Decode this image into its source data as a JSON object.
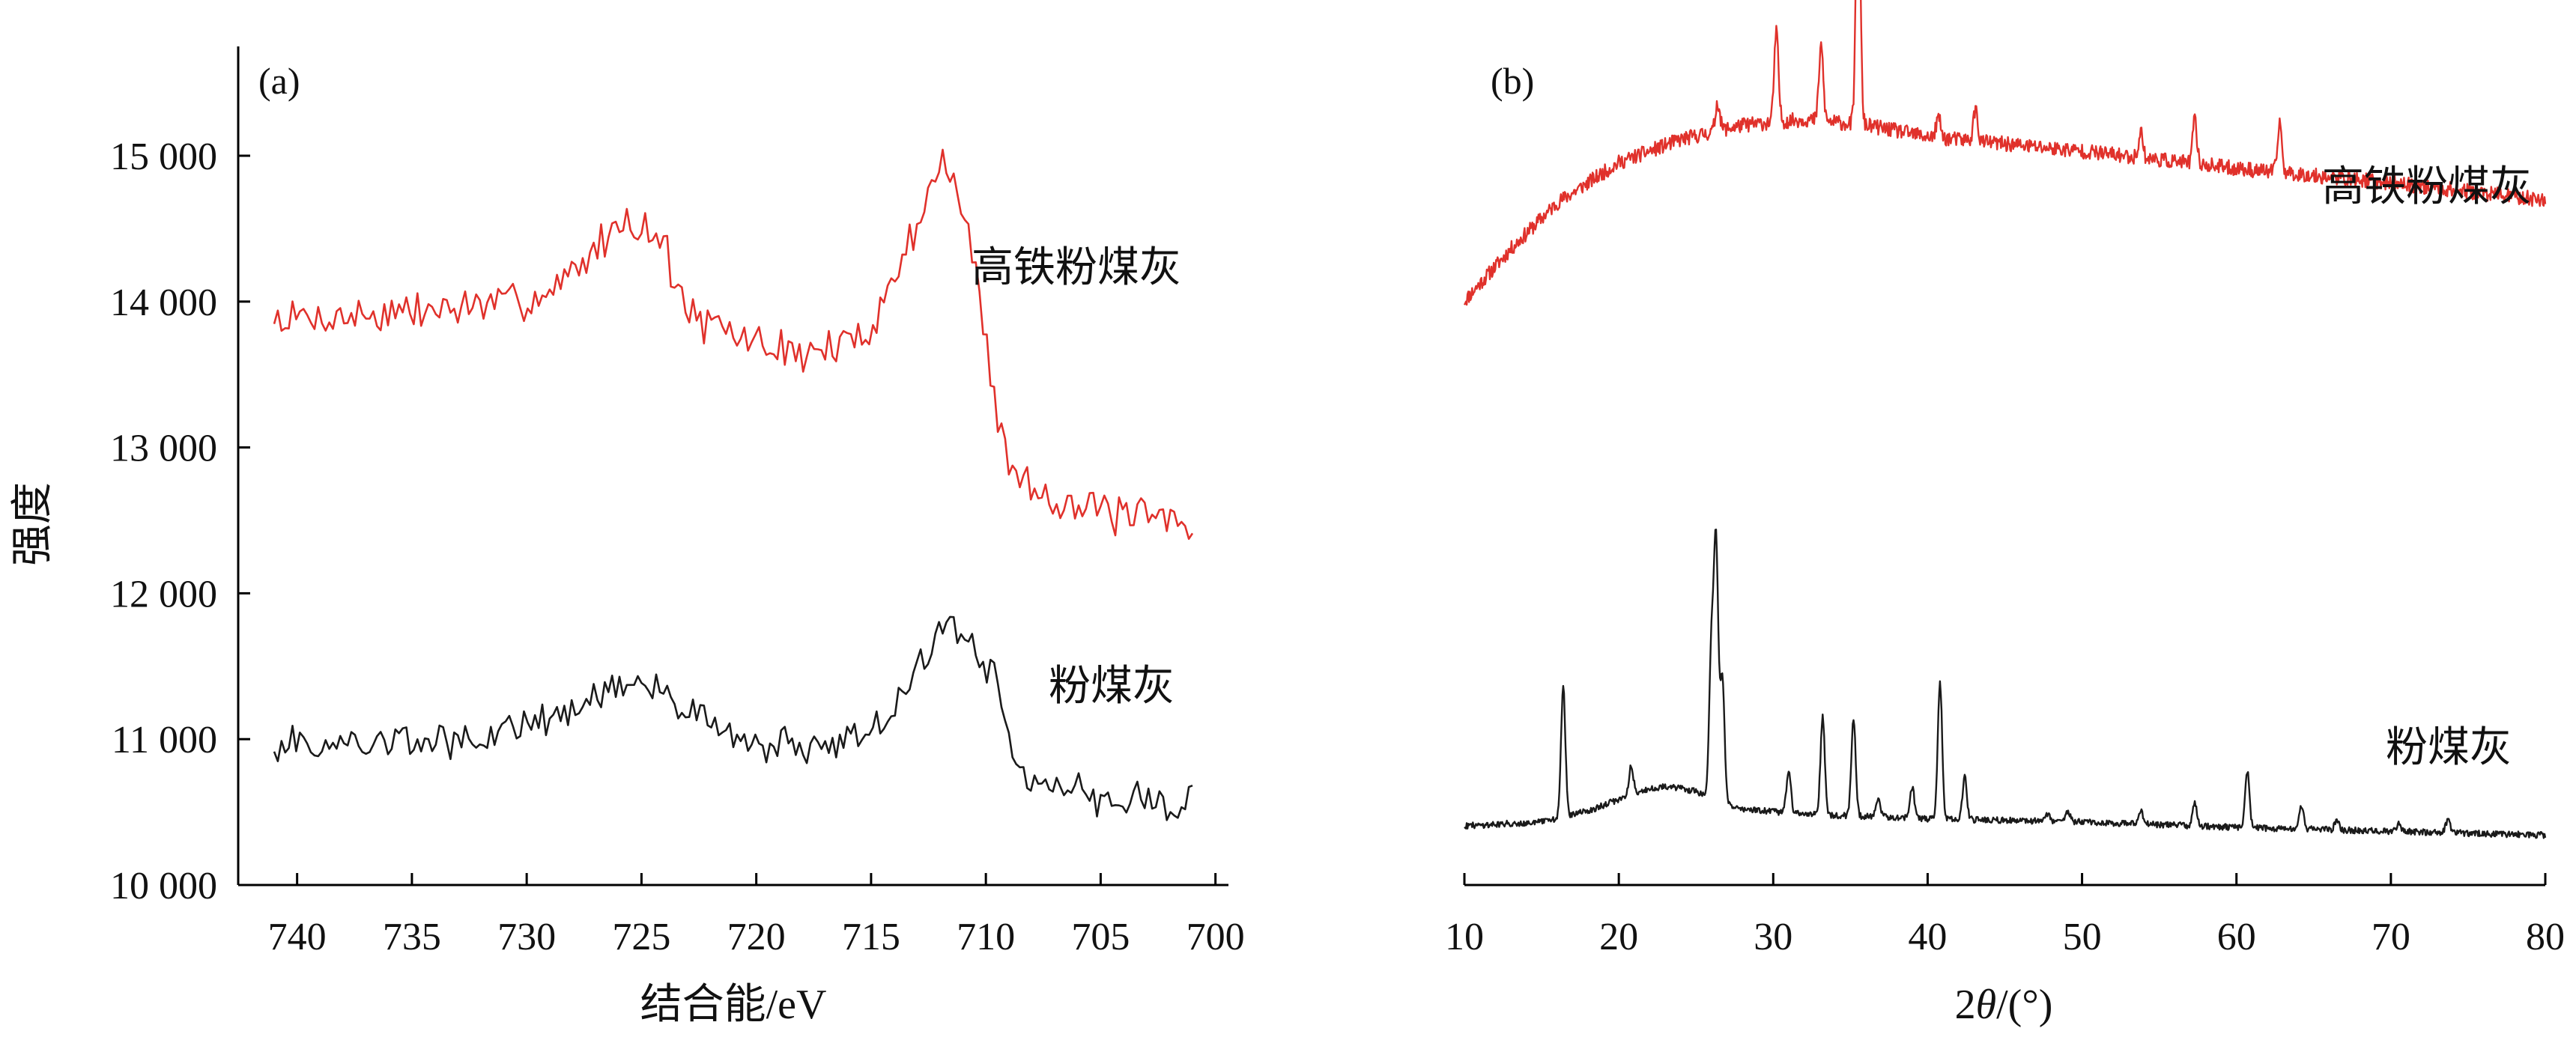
{
  "colors": {
    "red": "#e0312b",
    "black": "#1a1a1a",
    "axis": "#000000"
  },
  "chart_data": [
    {
      "panel_label": "(a)",
      "type": "line",
      "xlabel": "结合能/eV",
      "ylabel": "强度",
      "xlim": [
        741.5,
        699.2
      ],
      "x_reversed": true,
      "ylim": [
        10000,
        15500
      ],
      "xticks": [
        740,
        735,
        730,
        725,
        720,
        715,
        710,
        705,
        700
      ],
      "xtick_labels": [
        "740",
        "735",
        "730",
        "725",
        "720",
        "715",
        "710",
        "705",
        "700"
      ],
      "yticks": [
        10000,
        11000,
        12000,
        13000,
        14000,
        15000
      ],
      "ytick_labels": [
        "10 000",
        "11 000",
        "12 000",
        "13 000",
        "14 000",
        "15 000"
      ],
      "noise": {
        "seed": 7,
        "step": 0.16
      },
      "series": [
        {
          "name": "高铁粉煤灰",
          "color": "red",
          "amplitude": 120,
          "points": [
            [
              741,
              13880
            ],
            [
              738,
              13900
            ],
            [
              735,
              13930
            ],
            [
              733,
              13960
            ],
            [
              731,
              13980
            ],
            [
              729,
              14060
            ],
            [
              727,
              14350
            ],
            [
              726,
              14560
            ],
            [
              725,
              14530
            ],
            [
              724,
              14400
            ],
            [
              723.5,
              14100
            ],
            [
              722.5,
              13850
            ],
            [
              720,
              13720
            ],
            [
              718,
              13640
            ],
            [
              716,
              13700
            ],
            [
              715,
              13840
            ],
            [
              714,
              14150
            ],
            [
              713,
              14550
            ],
            [
              712,
              14950
            ],
            [
              711.5,
              14860
            ],
            [
              711,
              14600
            ],
            [
              710.5,
              14250
            ],
            [
              710,
              13750
            ],
            [
              709.5,
              13200
            ],
            [
              709,
              12880
            ],
            [
              708,
              12730
            ],
            [
              706,
              12600
            ],
            [
              704,
              12520
            ],
            [
              702,
              12500
            ],
            [
              701,
              12480
            ]
          ]
        },
        {
          "name": "粉煤灰",
          "color": "black",
          "amplitude": 110,
          "points": [
            [
              741,
              10950
            ],
            [
              738,
              10970
            ],
            [
              735,
              10980
            ],
            [
              732,
              11000
            ],
            [
              730,
              11080
            ],
            [
              728,
              11210
            ],
            [
              726,
              11380
            ],
            [
              725,
              11390
            ],
            [
              724,
              11350
            ],
            [
              723,
              11200
            ],
            [
              722,
              11080
            ],
            [
              720,
              10970
            ],
            [
              718,
              10960
            ],
            [
              716,
              10990
            ],
            [
              715,
              11070
            ],
            [
              714,
              11200
            ],
            [
              713,
              11480
            ],
            [
              712,
              11760
            ],
            [
              711,
              11720
            ],
            [
              710.5,
              11650
            ],
            [
              709.5,
              11400
            ],
            [
              709,
              11000
            ],
            [
              708.5,
              10760
            ],
            [
              707,
              10680
            ],
            [
              705,
              10600
            ],
            [
              703,
              10570
            ],
            [
              701,
              10580
            ]
          ]
        }
      ]
    },
    {
      "panel_label": "(b)",
      "type": "line",
      "xlabel_prefix": "2",
      "xlabel_theta": "θ",
      "xlabel_suffix": "/(°)",
      "xlim": [
        10,
        80
      ],
      "xticks": [
        10,
        20,
        30,
        40,
        50,
        60,
        70,
        80
      ],
      "xtick_labels": [
        "10",
        "20",
        "30",
        "40",
        "50",
        "60",
        "70",
        "80"
      ],
      "noise": {
        "seed": 11,
        "step": 0.05
      },
      "series": [
        {
          "name": "高铁粉煤灰",
          "color": "red",
          "amplitude": 0.13,
          "baseline": [
            [
              10,
              0
            ],
            [
              13,
              0.9
            ],
            [
              16,
              1.7
            ],
            [
              20,
              2.4
            ],
            [
              24,
              2.8
            ],
            [
              28,
              3.05
            ],
            [
              32,
              3.15
            ],
            [
              36,
              3.05
            ],
            [
              40,
              2.85
            ],
            [
              50,
              2.6
            ],
            [
              60,
              2.3
            ],
            [
              70,
              2.05
            ],
            [
              80,
              1.75
            ]
          ],
          "peaks": [
            [
              26.4,
              0.5
            ],
            [
              30.2,
              1.55
            ],
            [
              33.1,
              1.3
            ],
            [
              35.5,
              4.5
            ],
            [
              40.7,
              0.35
            ],
            [
              43.1,
              0.55
            ],
            [
              53.8,
              0.45
            ],
            [
              57.3,
              0.75
            ],
            [
              62.8,
              0.85
            ]
          ]
        },
        {
          "name": "粉煤灰",
          "color": "black",
          "amplitude": 0.08,
          "baseline": [
            [
              10,
              0.52
            ],
            [
              15,
              0.62
            ],
            [
              18,
              0.9
            ],
            [
              21,
              1.35
            ],
            [
              23,
              1.55
            ],
            [
              25,
              1.4
            ],
            [
              28,
              0.95
            ],
            [
              32,
              0.82
            ],
            [
              40,
              0.7
            ],
            [
              50,
              0.62
            ],
            [
              60,
              0.48
            ],
            [
              70,
              0.38
            ],
            [
              80,
              0.28
            ]
          ],
          "peaks": [
            [
              16.4,
              3.3
            ],
            [
              20.8,
              0.75
            ],
            [
              26,
              3.9
            ],
            [
              26.3,
              6.5
            ],
            [
              26.7,
              3.2
            ],
            [
              31,
              1.1
            ],
            [
              33.2,
              2.5
            ],
            [
              35.2,
              2.5
            ],
            [
              36.8,
              0.5
            ],
            [
              39,
              0.8
            ],
            [
              40.8,
              3.5
            ],
            [
              42.4,
              1.1
            ],
            [
              47.8,
              0.2
            ],
            [
              49.1,
              0.25
            ],
            [
              53.8,
              0.35
            ],
            [
              57.3,
              0.6
            ],
            [
              60.7,
              1.45
            ],
            [
              64.2,
              0.6
            ],
            [
              66.5,
              0.25
            ],
            [
              70.5,
              0.2
            ],
            [
              73.7,
              0.35
            ]
          ]
        }
      ]
    }
  ]
}
